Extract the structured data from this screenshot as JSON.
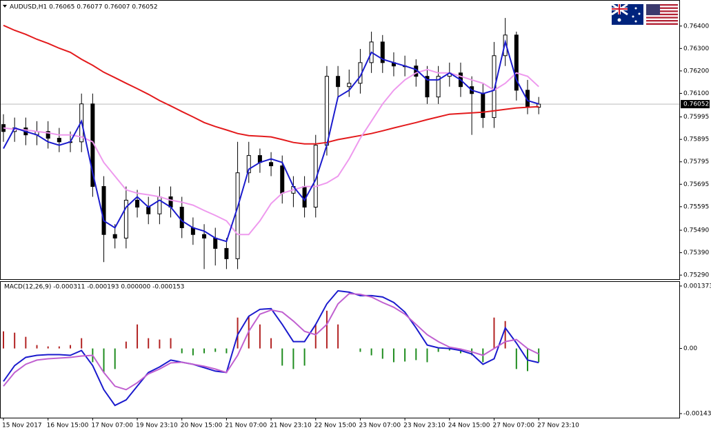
{
  "chart_data": [
    {
      "type": "candlestick",
      "title": "AUDUSD,H1  0.76065 0.76077 0.76007 0.76052",
      "color": "#000000",
      "categories": [
        "15 Nov 2017",
        null,
        null,
        null,
        "16 Nov 15:00",
        null,
        null,
        null,
        "17 Nov 07:00",
        null,
        null,
        null,
        "19 Nov 23:10",
        null,
        null,
        null,
        "20 Nov 15:00",
        null,
        null,
        null,
        "21 Nov 07:00",
        null,
        null,
        null,
        "21 Nov 23:10",
        null,
        null,
        null,
        "22 Nov 15:00",
        null,
        null,
        null,
        "23 Nov 07:00",
        null,
        null,
        null,
        "23 Nov 23:10",
        null,
        null,
        null,
        "24 Nov 15:00",
        null,
        null,
        null,
        "27 Nov 07:00",
        null,
        null,
        null,
        "27 Nov 23:10"
      ],
      "open": [
        0.75961,
        0.7593,
        0.75946,
        0.75915,
        0.7593,
        0.759,
        0.75884,
        0.75884,
        0.76053,
        0.75685,
        0.75471,
        0.75455,
        0.75624,
        0.75593,
        0.75563,
        0.75639,
        0.75593,
        0.75501,
        0.75471,
        0.75455,
        0.75409,
        0.75363,
        0.75746,
        0.75823,
        0.75792,
        0.75777,
        0.75655,
        0.75685,
        0.75593,
        0.75869,
        0.76176,
        0.7613,
        0.76145,
        0.76237,
        0.76329,
        0.76237,
        0.76222,
        0.76222,
        0.76176,
        0.76084,
        0.76176,
        0.76191,
        0.7613,
        0.76099,
        0.75992,
        0.76268,
        0.7636,
        0.76114,
        0.76038
      ],
      "high": [
        0.76007,
        0.75992,
        0.75992,
        0.75976,
        0.75976,
        0.75946,
        0.7593,
        0.76099,
        0.76099,
        0.75731,
        0.75517,
        0.75685,
        0.7567,
        0.75639,
        0.75685,
        0.75685,
        0.75639,
        0.75547,
        0.75517,
        0.75501,
        0.75455,
        0.75884,
        0.75884,
        0.75854,
        0.75838,
        0.75823,
        0.75731,
        0.75731,
        0.75915,
        0.76222,
        0.76222,
        0.76206,
        0.76298,
        0.76375,
        0.7636,
        0.76283,
        0.76268,
        0.76252,
        0.76222,
        0.76222,
        0.76237,
        0.76237,
        0.76176,
        0.76145,
        0.76329,
        0.76436,
        0.76375,
        0.7616,
        0.76084
      ],
      "low": [
        0.75884,
        0.75884,
        0.75869,
        0.75869,
        0.75854,
        0.75838,
        0.75838,
        0.75838,
        0.75639,
        0.75348,
        0.75409,
        0.75409,
        0.75547,
        0.75517,
        0.75517,
        0.75547,
        0.75455,
        0.75425,
        0.75317,
        0.75333,
        0.75317,
        0.75317,
        0.75701,
        0.75746,
        0.75731,
        0.75609,
        0.75593,
        0.75547,
        0.75547,
        0.75823,
        0.76084,
        0.76084,
        0.76099,
        0.76191,
        0.76191,
        0.76176,
        0.76176,
        0.7613,
        0.76053,
        0.76053,
        0.7613,
        0.76084,
        0.75915,
        0.75946,
        0.75946,
        0.76222,
        0.76068,
        0.76007,
        0.76007
      ],
      "close": [
        0.7593,
        0.75946,
        0.75915,
        0.7593,
        0.759,
        0.75884,
        0.75884,
        0.76053,
        0.75685,
        0.75471,
        0.75455,
        0.75624,
        0.75593,
        0.75563,
        0.75639,
        0.75593,
        0.75501,
        0.75471,
        0.75455,
        0.75409,
        0.75363,
        0.75746,
        0.75823,
        0.75792,
        0.75777,
        0.75655,
        0.75685,
        0.75593,
        0.75869,
        0.76176,
        0.7613,
        0.76145,
        0.76237,
        0.76329,
        0.76237,
        0.76222,
        0.76222,
        0.76176,
        0.76084,
        0.76176,
        0.76191,
        0.7613,
        0.76099,
        0.75992,
        0.76268,
        0.7636,
        0.76114,
        0.76038,
        0.76052
      ],
      "series": [
        {
          "color": "#e31a1c",
          "values": [
            0.76403,
            0.76381,
            0.76363,
            0.76341,
            0.76323,
            0.76301,
            0.76283,
            0.76252,
            0.76225,
            0.76194,
            0.7617,
            0.76145,
            0.76121,
            0.76096,
            0.76068,
            0.76044,
            0.76019,
            0.75995,
            0.7597,
            0.75952,
            0.75937,
            0.75921,
            0.75912,
            0.75909,
            0.75906,
            0.75894,
            0.75881,
            0.75875,
            0.75875,
            0.75881,
            0.75894,
            0.75903,
            0.75912,
            0.75921,
            0.75933,
            0.75946,
            0.75958,
            0.7597,
            0.75983,
            0.75995,
            0.76007,
            0.7601,
            0.76013,
            0.76016,
            0.76022,
            0.76029,
            0.76035,
            0.76038,
            0.76041
          ]
        },
        {
          "color": "#ee99ee",
          "values": [
            0.75946,
            0.7594,
            0.75937,
            0.7593,
            0.75924,
            0.75915,
            0.75915,
            0.75906,
            0.75884,
            0.75792,
            0.75731,
            0.7567,
            0.75655,
            0.75648,
            0.75639,
            0.75624,
            0.75615,
            0.75602,
            0.75578,
            0.75556,
            0.75532,
            0.75471,
            0.75471,
            0.75532,
            0.75609,
            0.75655,
            0.7567,
            0.75685,
            0.75685,
            0.75701,
            0.75731,
            0.75808,
            0.759,
            0.75976,
            0.76053,
            0.76114,
            0.7616,
            0.76191,
            0.76206,
            0.76191,
            0.76191,
            0.76176,
            0.7616,
            0.76145,
            0.76114,
            0.76145,
            0.76191,
            0.76176,
            0.7613
          ]
        },
        {
          "color": "#1a1acd",
          "values": [
            0.75854,
            0.75946,
            0.7593,
            0.75915,
            0.75884,
            0.75869,
            0.75884,
            0.75976,
            0.75746,
            0.75532,
            0.75501,
            0.75593,
            0.75639,
            0.75593,
            0.75624,
            0.75593,
            0.75532,
            0.75501,
            0.75486,
            0.75455,
            0.7544,
            0.75593,
            0.75762,
            0.75792,
            0.75808,
            0.75792,
            0.75685,
            0.75624,
            0.75716,
            0.75869,
            0.76084,
            0.76114,
            0.76176,
            0.76283,
            0.76252,
            0.76237,
            0.76222,
            0.76206,
            0.7616,
            0.7616,
            0.76191,
            0.7616,
            0.76114,
            0.76099,
            0.76114,
            0.76329,
            0.7616,
            0.76068,
            0.76053
          ]
        }
      ],
      "current_price": 0.76052,
      "ylim": [
        0.75272,
        0.76513
      ],
      "yticks": [
        {
          "value": 0.764,
          "label": "0.76400"
        },
        {
          "value": 0.763,
          "label": "0.76300"
        },
        {
          "value": 0.762,
          "label": "0.76200"
        },
        {
          "value": 0.761,
          "label": "0.76100"
        },
        0.75995,
        0.75895,
        0.75795,
        0.75695,
        0.75595,
        {
          "value": 0.7549,
          "label": "0.75490"
        },
        {
          "value": 0.7539,
          "label": "0.75390"
        },
        {
          "value": 0.7529,
          "label": "0.75290"
        }
      ]
    },
    {
      "type": "macd",
      "title": "MACD(12,26,9) -0.000311 -0.000193 0.000000 -0.000153",
      "histogram": {
        "positive_color": "#b22222",
        "negative_color": "#1e8c1e",
        "values": [
          0.000377,
          0.000347,
          0.000256,
          7.5e-05,
          4.5e-05,
          4.5e-05,
          7.5e-05,
          0.000226,
          -0.000302,
          -0.000528,
          -0.000452,
          0.000151,
          0.000528,
          0.000226,
          0.000196,
          0.000226,
          -0.000106,
          -0.000151,
          -0.000106,
          -7.5e-05,
          -0.000106,
          0.000679,
          0.000709,
          0.000528,
          0.000226,
          -0.000377,
          -0.000452,
          -0.000377,
          0.000528,
          0.00083,
          0.000528,
          0,
          -7.5e-05,
          -0.000151,
          -0.000226,
          -0.000302,
          -0.000287,
          -0.000256,
          -0.000302,
          -7.5e-05,
          -4.5e-05,
          -0.000106,
          -0.000151,
          -0.000302,
          0.000679,
          0.000603,
          -0.000452,
          -0.000498,
          -0.000302
        ]
      },
      "series": [
        {
          "color": "#1a1acd",
          "values": [
            -0.000724,
            -0.000377,
            -0.000196,
            -0.000151,
            -0.000136,
            -0.000136,
            -0.000151,
            -4.5e-05,
            -0.000377,
            -0.000905,
            -0.001252,
            -0.001131,
            -0.000829,
            -0.000528,
            -0.000407,
            -0.000256,
            -0.000302,
            -0.000347,
            -0.000422,
            -0.000498,
            -0.000528,
            0.000302,
            0.000709,
            0.00086,
            0.000875,
            0.000528,
            0.000151,
            0.000151,
            0.000528,
            0.00098,
            0.001267,
            0.001237,
            0.001161,
            0.001161,
            0.001131,
            0.00101,
            0.000799,
            0.000452,
            7.5e-05,
            1.5e-05,
            0,
            -4.5e-05,
            -0.000121,
            -0.000347,
            -0.000226,
            0.000452,
            0.000121,
            -0.000256,
            -0.000311
          ]
        },
        {
          "color": "#c060d0",
          "values": [
            -0.000829,
            -0.000528,
            -0.000347,
            -0.000256,
            -0.000226,
            -0.000211,
            -0.000196,
            -0.000166,
            -0.000151,
            -0.000528,
            -0.000829,
            -0.000905,
            -0.000754,
            -0.000558,
            -0.000452,
            -0.000317,
            -0.000302,
            -0.000347,
            -0.000392,
            -0.000452,
            -0.000528,
            -0.000151,
            0.000377,
            0.000754,
            0.000845,
            0.000799,
            0.000603,
            0.000377,
            0.000302,
            0.000528,
            0.00098,
            0.001206,
            0.001191,
            0.001131,
            0.00101,
            0.000905,
            0.000754,
            0.000528,
            0.000302,
            0.000151,
            3e-05,
            -1.5e-05,
            -7.5e-05,
            -0.000151,
            0,
            0.000151,
            0.000196,
            0,
            -0.000121
          ]
        }
      ],
      "ylim": [
        -0.001522,
        0.001463
      ],
      "yticks": [
        0.001373,
        {
          "value": 0,
          "label": "0.00"
        },
        -0.001432
      ]
    }
  ]
}
